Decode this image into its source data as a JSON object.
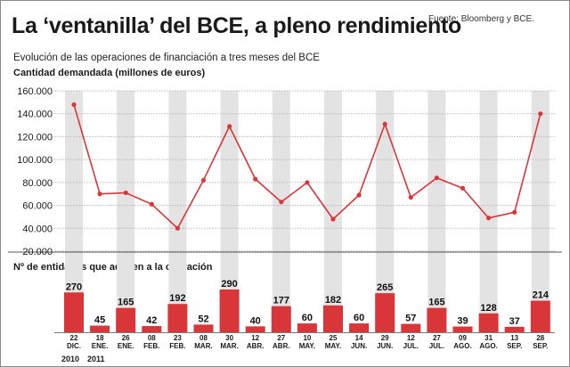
{
  "chart_data": {
    "type": "line",
    "title": "La ‘ventanilla’ del BCE, a pleno rendimiento",
    "subtitle": "Evolución de las operaciones de financiación a tres meses del BCE",
    "source": "Fuente: Bloomberg y BCE.",
    "ylabel": "Cantidad demandada (millones de euros)",
    "ylim": [
      20000,
      160000
    ],
    "yticks": [
      "20.000",
      "40.000",
      "60.000",
      "80.000",
      "100.000",
      "120.000",
      "140.000",
      "160.000"
    ],
    "grid": true,
    "categories": [
      {
        "day": "22",
        "month": "DIC."
      },
      {
        "day": "18",
        "month": "ENE."
      },
      {
        "day": "26",
        "month": "ENE."
      },
      {
        "day": "08",
        "month": "FEB."
      },
      {
        "day": "23",
        "month": "FEB."
      },
      {
        "day": "08",
        "month": "MAR."
      },
      {
        "day": "30",
        "month": "MAR."
      },
      {
        "day": "12",
        "month": "ABR."
      },
      {
        "day": "27",
        "month": "ABR."
      },
      {
        "day": "10",
        "month": "MAY."
      },
      {
        "day": "25",
        "month": "MAY."
      },
      {
        "day": "14",
        "month": "JUN."
      },
      {
        "day": "29",
        "month": "JUN."
      },
      {
        "day": "12",
        "month": "JUL."
      },
      {
        "day": "27",
        "month": "JUL."
      },
      {
        "day": "09",
        "month": "AGO."
      },
      {
        "day": "31",
        "month": "AGO."
      },
      {
        "day": "13",
        "month": "SEP."
      },
      {
        "day": "28",
        "month": "SEP."
      }
    ],
    "series": [
      {
        "values": [
          148000,
          70000,
          71000,
          61000,
          40000,
          82000,
          129000,
          83000,
          63000,
          80000,
          48000,
          69000,
          131000,
          67000,
          84000,
          75000,
          49000,
          54000,
          140000
        ]
      }
    ],
    "line_color": "#d9363a",
    "years": [
      "2010",
      "2011"
    ],
    "bars": {
      "title": "Nº de entidades que acuden a la operación",
      "values": [
        270,
        45,
        165,
        42,
        192,
        52,
        290,
        40,
        177,
        60,
        182,
        60,
        265,
        57,
        165,
        39,
        128,
        37,
        214
      ],
      "color": "#d9363a",
      "max": 290
    }
  }
}
